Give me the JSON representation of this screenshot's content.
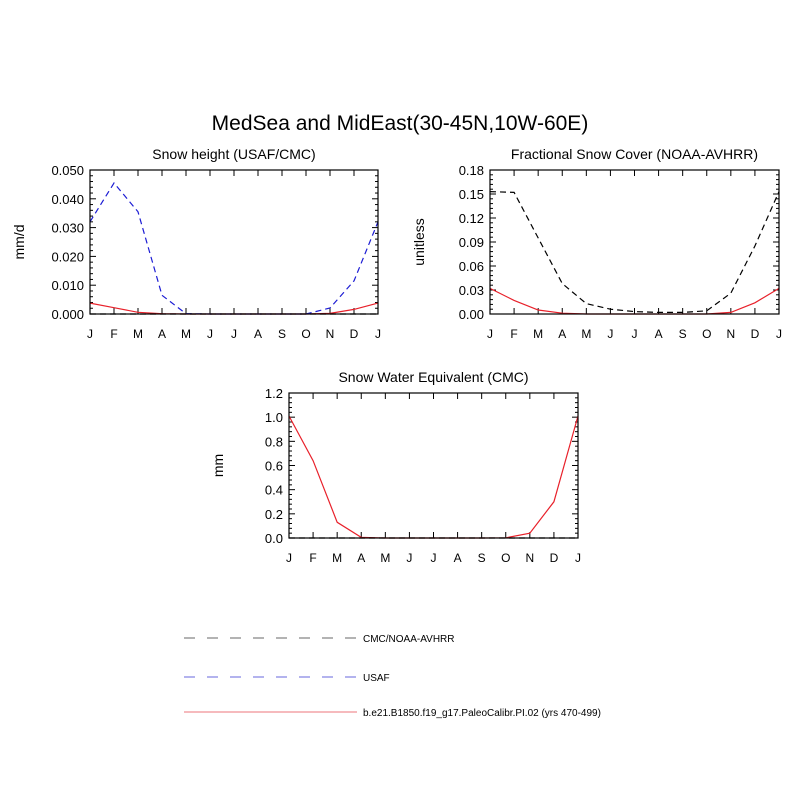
{
  "title": "MedSea and MidEast(30-45N,10W-60E)",
  "colors": {
    "model": "#e8202a",
    "usaf": "#1c1cd4",
    "obs": "#000000",
    "legend_model": "#f4a3a7",
    "legend_usaf": "#9a9ae8",
    "legend_obs": "#9a9a9a"
  },
  "legend": [
    {
      "label": "CMC/NOAA-AVHRR",
      "style": "dashed",
      "color_key": "legend_obs"
    },
    {
      "label": "USAF",
      "style": "dashed",
      "color_key": "legend_usaf"
    },
    {
      "label": "b.e21.B1850.f19_g17.PaleoCalibr.PI.02 (yrs 470-499)",
      "style": "solid",
      "color_key": "legend_model"
    }
  ],
  "chart_data": [
    {
      "type": "line",
      "title": "Snow height (USAF/CMC)",
      "ylabel": "mm/d",
      "xlabel": "",
      "categories": [
        "J",
        "F",
        "M",
        "A",
        "M",
        "J",
        "J",
        "A",
        "S",
        "O",
        "N",
        "D",
        "J"
      ],
      "ylim": [
        0,
        0.05
      ],
      "yticks": [
        0.0,
        0.01,
        0.02,
        0.03,
        0.04,
        0.05
      ],
      "ytick_labels": [
        "0.000",
        "0.010",
        "0.020",
        "0.030",
        "0.040",
        "0.050"
      ],
      "series": [
        {
          "style": "solid",
          "color_key": "model",
          "values": [
            0.0038,
            0.0022,
            0.0006,
            0.0001,
            0,
            0,
            0,
            0,
            0,
            0,
            0.0002,
            0.0016,
            0.0038
          ]
        },
        {
          "style": "dashed",
          "color_key": "usaf",
          "values": [
            0.032,
            0.0455,
            0.0355,
            0.0065,
            0.0001,
            0,
            0,
            0,
            0,
            0,
            0.0021,
            0.0115,
            0.032
          ]
        },
        {
          "style": "dashed",
          "color_key": "obs",
          "values": [
            0,
            0,
            0,
            0,
            0,
            0,
            0,
            0,
            0,
            0,
            0,
            0,
            0
          ]
        }
      ]
    },
    {
      "type": "line",
      "title": "Fractional Snow Cover (NOAA-AVHRR)",
      "ylabel": "unitless",
      "xlabel": "",
      "categories": [
        "J",
        "F",
        "M",
        "A",
        "M",
        "J",
        "J",
        "A",
        "S",
        "O",
        "N",
        "D",
        "J"
      ],
      "ylim": [
        0,
        0.18
      ],
      "yticks": [
        0.0,
        0.03,
        0.06,
        0.09,
        0.12,
        0.15,
        0.18
      ],
      "ytick_labels": [
        "0.00",
        "0.03",
        "0.06",
        "0.09",
        "0.12",
        "0.15",
        "0.18"
      ],
      "series": [
        {
          "style": "dashed",
          "color_key": "obs",
          "values": [
            0.153,
            0.152,
            0.095,
            0.038,
            0.013,
            0.006,
            0.003,
            0.002,
            0.002,
            0.004,
            0.026,
            0.085,
            0.153
          ]
        },
        {
          "style": "solid",
          "color_key": "model",
          "values": [
            0.032,
            0.017,
            0.005,
            0.001,
            0,
            0,
            0,
            0,
            0,
            0,
            0.002,
            0.014,
            0.032
          ]
        }
      ]
    },
    {
      "type": "line",
      "title": "Snow Water Equivalent (CMC)",
      "ylabel": "mm",
      "xlabel": "",
      "categories": [
        "J",
        "F",
        "M",
        "A",
        "M",
        "J",
        "J",
        "A",
        "S",
        "O",
        "N",
        "D",
        "J"
      ],
      "ylim": [
        0,
        1.2
      ],
      "yticks": [
        0.0,
        0.2,
        0.4,
        0.6,
        0.8,
        1.0,
        1.2
      ],
      "ytick_labels": [
        "0.0",
        "0.2",
        "0.4",
        "0.6",
        "0.8",
        "1.0",
        "1.2"
      ],
      "series": [
        {
          "style": "solid",
          "color_key": "model",
          "values": [
            1.01,
            0.64,
            0.13,
            0.005,
            0,
            0,
            0,
            0,
            0,
            0.002,
            0.04,
            0.3,
            1.01
          ]
        },
        {
          "style": "dashed",
          "color_key": "obs",
          "values": [
            0,
            0,
            0,
            0,
            0,
            0,
            0,
            0,
            0,
            0,
            0,
            0,
            0
          ]
        }
      ]
    }
  ]
}
